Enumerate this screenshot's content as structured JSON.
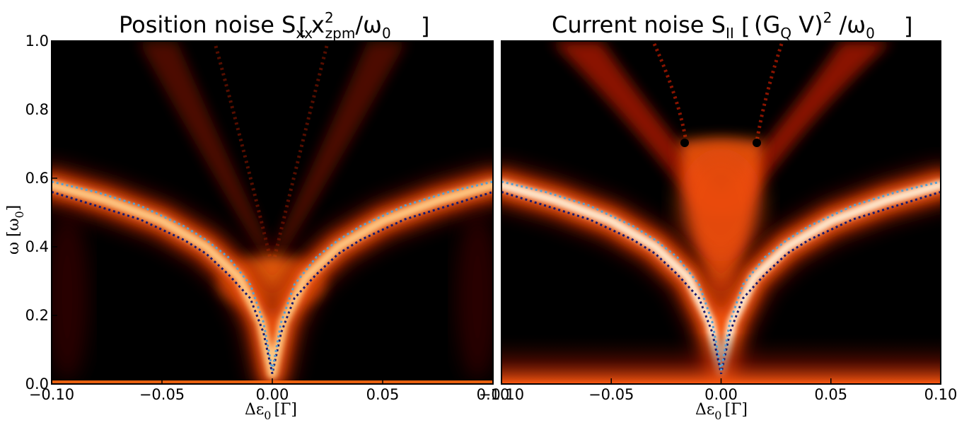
{
  "chart_data": [
    {
      "type": "heatmap",
      "title": "Position noise S",
      "title_sub": "xx",
      "title_bracket_main": "x",
      "title_bracket_sup": "2",
      "title_bracket_sub": "zpm",
      "title_bracket_tail": "/ω",
      "title_bracket_tail_sub": "0",
      "xlabel": "Δε",
      "xlabel_sub": "0",
      "xlabel_unit": "[Γ]",
      "ylabel": "ω [ω",
      "ylabel_sub": "0",
      "ylabel_close": "]",
      "xlim": [
        -0.1,
        0.1
      ],
      "ylim": [
        0.0,
        1.0
      ],
      "xticks": [
        -0.1,
        -0.05,
        0.0,
        0.05,
        0.1
      ],
      "xtick_labels": [
        "−0.10",
        "−0.05",
        "0.00",
        "0.05",
        "0.10"
      ],
      "yticks": [
        0.0,
        0.2,
        0.4,
        0.6,
        0.8,
        1.0
      ],
      "ytick_labels": [
        "0.0",
        "0.2",
        "0.4",
        "0.6",
        "0.8",
        "1.0"
      ],
      "colormap": "gist_heat",
      "ridge": {
        "x": [
          -0.1,
          -0.075,
          -0.05,
          -0.03,
          -0.015,
          -0.005,
          0.0,
          0.005,
          0.015,
          0.03,
          0.05,
          0.075,
          0.1
        ],
        "y": [
          0.58,
          0.535,
          0.475,
          0.4,
          0.31,
          0.18,
          0.03,
          0.18,
          0.31,
          0.4,
          0.475,
          0.535,
          0.58
        ]
      },
      "series": [
        {
          "style": "dotted",
          "color": "#1a1a6e",
          "x": [
            -0.1,
            -0.08,
            -0.06,
            -0.04,
            -0.03,
            -0.02,
            -0.01,
            -0.004,
            0.0,
            0.004,
            0.01,
            0.02,
            0.03,
            0.04,
            0.06,
            0.08,
            0.1
          ],
          "y": [
            0.56,
            0.52,
            0.48,
            0.42,
            0.38,
            0.32,
            0.25,
            0.15,
            0.03,
            0.15,
            0.25,
            0.32,
            0.38,
            0.42,
            0.48,
            0.52,
            0.56
          ]
        },
        {
          "style": "dotted",
          "color": "#5aa0d0",
          "x": [
            -0.1,
            -0.08,
            -0.06,
            -0.04,
            -0.03,
            -0.02,
            -0.01,
            -0.004,
            0.0,
            0.004,
            0.01,
            0.02,
            0.03,
            0.04,
            0.06,
            0.08,
            0.1
          ],
          "y": [
            0.59,
            0.56,
            0.52,
            0.46,
            0.42,
            0.37,
            0.29,
            0.18,
            0.04,
            0.18,
            0.29,
            0.37,
            0.42,
            0.46,
            0.52,
            0.56,
            0.59
          ]
        }
      ]
    },
    {
      "type": "heatmap",
      "title": "Current noise S",
      "title_sub": "II",
      "title_bracket_main": "(G",
      "title_bracket_main_sub": "Q",
      "title_bracket_after": " V)",
      "title_bracket_sup": "2",
      "title_bracket_tail": " /ω",
      "title_bracket_tail_sub": "0",
      "xlabel": "Δε",
      "xlabel_sub": "0",
      "xlabel_unit": "[Γ]",
      "xlim": [
        -0.1,
        0.1
      ],
      "ylim": [
        0.0,
        1.0
      ],
      "xticks": [
        -0.1,
        -0.05,
        0.0,
        0.05,
        0.1
      ],
      "xtick_labels": [
        "−0.10",
        "−0.05",
        "0.00",
        "0.05",
        "0.10"
      ],
      "colormap": "gist_heat",
      "ridge": {
        "x": [
          -0.1,
          -0.075,
          -0.05,
          -0.03,
          -0.015,
          -0.005,
          0.0,
          0.005,
          0.015,
          0.03,
          0.05,
          0.075,
          0.1
        ],
        "y": [
          0.58,
          0.535,
          0.475,
          0.4,
          0.31,
          0.18,
          0.03,
          0.18,
          0.31,
          0.4,
          0.475,
          0.535,
          0.58
        ]
      },
      "series": [
        {
          "style": "dotted",
          "color": "#1a1a6e",
          "x": [
            -0.1,
            -0.08,
            -0.06,
            -0.04,
            -0.03,
            -0.02,
            -0.01,
            -0.004,
            0.0,
            0.004,
            0.01,
            0.02,
            0.03,
            0.04,
            0.06,
            0.08,
            0.1
          ],
          "y": [
            0.56,
            0.52,
            0.48,
            0.42,
            0.38,
            0.32,
            0.25,
            0.15,
            0.03,
            0.15,
            0.25,
            0.32,
            0.38,
            0.42,
            0.48,
            0.52,
            0.56
          ]
        },
        {
          "style": "dotted",
          "color": "#5aa0d0",
          "x": [
            -0.1,
            -0.08,
            -0.06,
            -0.04,
            -0.03,
            -0.02,
            -0.01,
            -0.004,
            0.0,
            0.004,
            0.01,
            0.02,
            0.03,
            0.04,
            0.06,
            0.08,
            0.1
          ],
          "y": [
            0.59,
            0.56,
            0.52,
            0.46,
            0.42,
            0.37,
            0.29,
            0.18,
            0.04,
            0.18,
            0.29,
            0.37,
            0.42,
            0.46,
            0.52,
            0.56,
            0.59
          ]
        }
      ]
    }
  ]
}
